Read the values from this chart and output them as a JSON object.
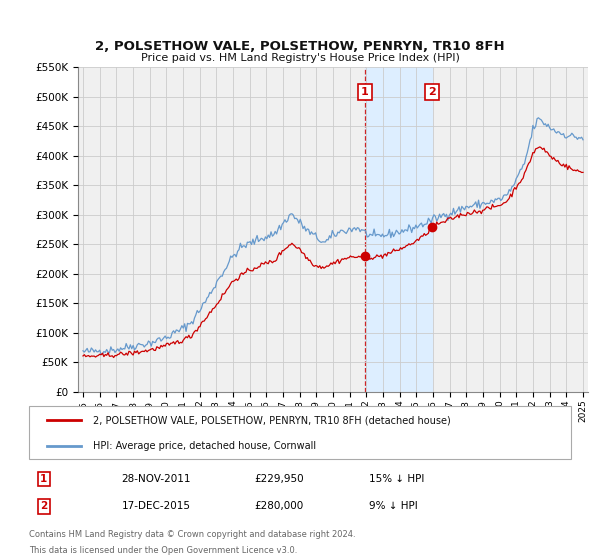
{
  "title": "2, POLSETHOW VALE, POLSETHOW, PENRYN, TR10 8FH",
  "subtitle": "Price paid vs. HM Land Registry's House Price Index (HPI)",
  "ylim": [
    0,
    550000
  ],
  "yticks": [
    0,
    50000,
    100000,
    150000,
    200000,
    250000,
    300000,
    350000,
    400000,
    450000,
    500000,
    550000
  ],
  "xlim_start": 1994.7,
  "xlim_end": 2025.3,
  "sale1_date": 2011.91,
  "sale1_price": 229950,
  "sale1_label": "28-NOV-2011",
  "sale1_pct": "15% ↓ HPI",
  "sale2_date": 2015.96,
  "sale2_price": 280000,
  "sale2_label": "17-DEC-2015",
  "sale2_pct": "9% ↓ HPI",
  "red_color": "#cc0000",
  "blue_color": "#6699cc",
  "shade_color": "#ddeeff",
  "grid_color": "#cccccc",
  "background_color": "#f0f0f0",
  "legend_label_red": "2, POLSETHOW VALE, POLSETHOW, PENRYN, TR10 8FH (detached house)",
  "legend_label_blue": "HPI: Average price, detached house, Cornwall",
  "footer1": "Contains HM Land Registry data © Crown copyright and database right 2024.",
  "footer2": "This data is licensed under the Open Government Licence v3.0."
}
